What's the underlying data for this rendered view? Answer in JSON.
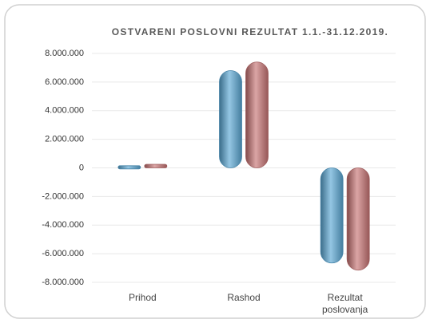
{
  "chart_data": {
    "type": "bar",
    "title": "OSTVARENI POSLOVNI REZULTAT 1.1.-31.12.2019.",
    "categories": [
      "Prihod",
      "Rashod",
      "Rezultat poslovanja"
    ],
    "series": [
      {
        "color": "#5ba8d4",
        "values": [
          150000,
          6800000,
          -6650000
        ]
      },
      {
        "color": "#c87474",
        "values": [
          250000,
          7400000,
          -7150000
        ]
      }
    ],
    "ylim": [
      -8000000,
      8000000
    ],
    "yticks": [
      {
        "value": -8000000,
        "label": "-8.000.000"
      },
      {
        "value": -6000000,
        "label": "-6.000.000"
      },
      {
        "value": -4000000,
        "label": "-4.000.000"
      },
      {
        "value": -2000000,
        "label": "-2.000.000"
      },
      0,
      {
        "value": 2000000,
        "label": "2.000.000"
      },
      {
        "value": 4000000,
        "label": "4.000.000"
      },
      {
        "value": 6000000,
        "label": "6.000.000"
      },
      {
        "value": 8000000,
        "label": "8.000.000"
      }
    ],
    "grid": true
  }
}
